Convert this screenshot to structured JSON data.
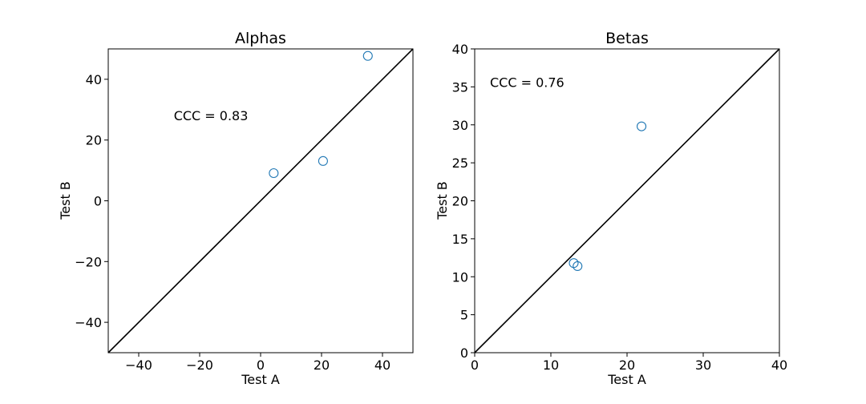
{
  "chart_data": [
    {
      "type": "scatter",
      "title": "Alphas",
      "xlabel": "Test A",
      "ylabel": "Test B",
      "xlim": [
        -50,
        50
      ],
      "ylim": [
        -50,
        50
      ],
      "xticks": [
        -40,
        -20,
        0,
        20,
        40
      ],
      "yticks": [
        -40,
        -20,
        0,
        20,
        40
      ],
      "xtick_labels": [
        "−40",
        "−20",
        "0",
        "20",
        "40"
      ],
      "ytick_labels": [
        "−40",
        "−20",
        "0",
        "20",
        "40"
      ],
      "series": [
        {
          "x": [
            4.3,
            20.5,
            35.2
          ],
          "y": [
            9.1,
            13.1,
            47.7
          ]
        }
      ],
      "reference_line": "y = x",
      "annotation": {
        "text": "CCC = 0.83",
        "x": -28.5,
        "y": 26.5
      },
      "grid": false,
      "colors": {
        "marker": "#1f77b4",
        "line": "#000000"
      }
    },
    {
      "type": "scatter",
      "title": "Betas",
      "xlabel": "Test A",
      "ylabel": "Test B",
      "xlim": [
        0,
        40
      ],
      "ylim": [
        0,
        40
      ],
      "xticks": [
        0,
        10,
        20,
        30,
        40
      ],
      "yticks": [
        0,
        5,
        10,
        15,
        20,
        25,
        30,
        35,
        40
      ],
      "xtick_labels": [
        "0",
        "10",
        "20",
        "30",
        "40"
      ],
      "ytick_labels": [
        "0",
        "5",
        "10",
        "15",
        "20",
        "25",
        "30",
        "35",
        "40"
      ],
      "series": [
        {
          "x": [
            13.0,
            13.5,
            21.9
          ],
          "y": [
            11.8,
            11.4,
            29.8
          ]
        }
      ],
      "reference_line": "y = x",
      "annotation": {
        "text": "CCC = 0.76",
        "x": 2.0,
        "y": 35.0
      },
      "grid": false,
      "colors": {
        "marker": "#1f77b4",
        "line": "#000000"
      }
    }
  ]
}
